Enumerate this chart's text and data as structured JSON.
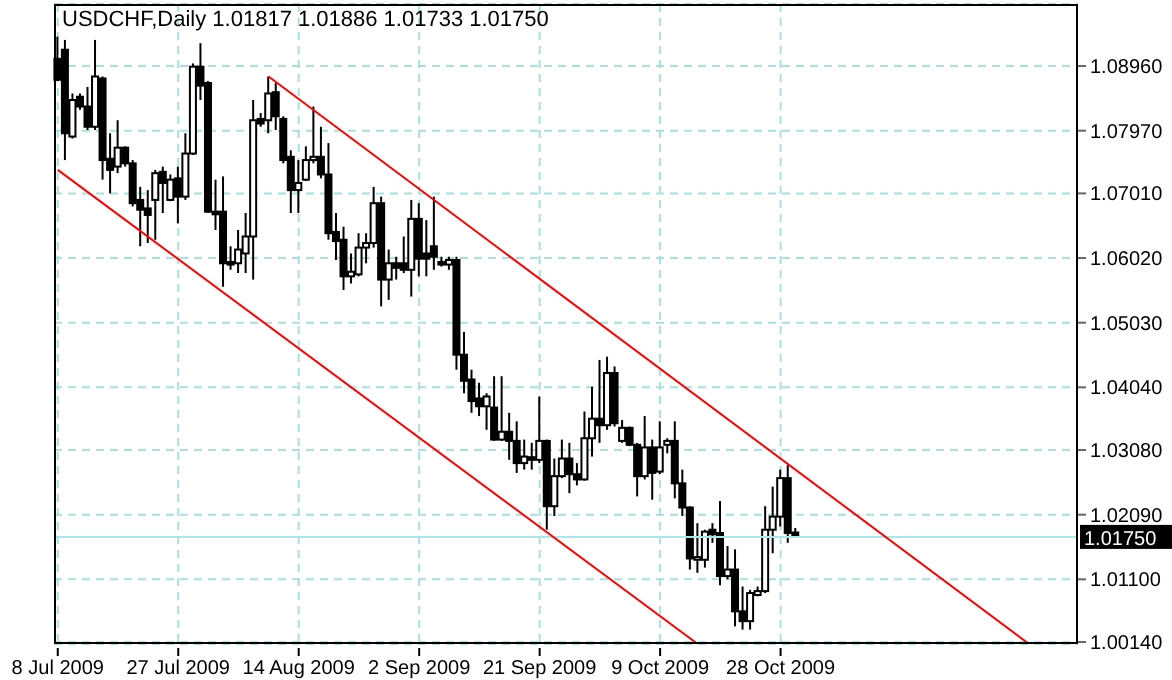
{
  "chart_data": {
    "type": "candlestick",
    "title": "USDCHF,Daily 1.01817 1.01886 1.01733 1.01750",
    "categories": [
      "8 Jul 2009",
      null,
      null,
      null,
      null,
      null,
      null,
      null,
      null,
      null,
      null,
      null,
      null,
      null,
      null,
      null,
      "27 Jul 2009",
      null,
      null,
      null,
      null,
      null,
      null,
      null,
      null,
      null,
      null,
      null,
      null,
      null,
      null,
      null,
      "14 Aug 2009",
      null,
      null,
      null,
      null,
      null,
      null,
      null,
      null,
      null,
      null,
      null,
      null,
      null,
      null,
      null,
      "2 Sep 2009",
      null,
      null,
      null,
      null,
      null,
      null,
      null,
      null,
      null,
      null,
      null,
      null,
      null,
      null,
      null,
      "21 Sep 2009",
      null,
      null,
      null,
      null,
      null,
      null,
      null,
      null,
      null,
      null,
      null,
      null,
      null,
      null,
      null,
      "9 Oct 2009",
      null,
      null,
      null,
      null,
      null,
      null,
      null,
      null,
      null,
      null,
      null,
      null,
      null,
      null,
      null,
      "28 Oct 2009",
      null,
      null,
      null,
      null,
      null,
      null,
      null,
      null,
      null,
      null,
      null,
      null,
      null,
      null,
      null,
      null,
      null,
      null,
      null,
      null,
      null,
      null,
      null,
      null,
      null,
      null,
      null,
      null,
      null,
      null,
      null,
      null,
      null,
      null,
      null,
      null,
      null,
      null,
      null
    ],
    "ohlc": [
      [
        1.0907,
        1.0941,
        1.0873,
        1.0875
      ],
      [
        1.0921,
        1.0936,
        1.0752,
        1.0793
      ],
      [
        1.0788,
        1.0854,
        1.0785,
        1.0844
      ],
      [
        1.0849,
        1.0854,
        1.0829,
        1.0834
      ],
      [
        1.0834,
        1.0864,
        1.0798,
        1.0803
      ],
      [
        1.0803,
        1.0936,
        1.0798,
        1.088
      ],
      [
        1.0877,
        1.088,
        1.0722,
        1.0752
      ],
      [
        1.0754,
        1.0793,
        1.0701,
        1.0737
      ],
      [
        1.0742,
        1.0813,
        1.0732,
        1.0771
      ],
      [
        1.0771,
        1.0773,
        1.0742,
        1.0747
      ],
      [
        1.0747,
        1.0752,
        1.0681,
        1.0686
      ],
      [
        1.0691,
        1.0711,
        1.062,
        1.0676
      ],
      [
        1.0678,
        1.0706,
        1.0625,
        1.0668
      ],
      [
        1.0691,
        1.0737,
        1.063,
        1.0732
      ],
      [
        1.0734,
        1.0742,
        1.0671,
        1.0717
      ],
      [
        1.0691,
        1.073,
        1.0689,
        1.0722
      ],
      [
        1.0724,
        1.0742,
        1.0655,
        1.0696
      ],
      [
        1.0696,
        1.0793,
        1.0691,
        1.0762
      ],
      [
        1.0762,
        1.09,
        1.076,
        1.0895
      ],
      [
        1.0895,
        1.0931,
        1.0844,
        1.0866
      ],
      [
        1.087,
        1.0873,
        1.0671,
        1.0673
      ],
      [
        1.0673,
        1.0722,
        1.0645,
        1.0669
      ],
      [
        1.0673,
        1.0727,
        1.0558,
        1.0594
      ],
      [
        1.0596,
        1.062,
        1.0584,
        1.0592
      ],
      [
        1.0594,
        1.0645,
        1.0579,
        1.0615
      ],
      [
        1.0609,
        1.0671,
        1.0579,
        1.0635
      ],
      [
        1.0635,
        1.0844,
        1.0569,
        1.0813
      ],
      [
        1.0815,
        1.0824,
        1.0803,
        1.0808
      ],
      [
        1.0813,
        1.088,
        1.0793,
        1.0854
      ],
      [
        1.0856,
        1.087,
        1.0798,
        1.0819
      ],
      [
        1.0815,
        1.0819,
        1.0747,
        1.0752
      ],
      [
        1.0757,
        1.0767,
        1.0671,
        1.0706
      ],
      [
        1.0706,
        1.0752,
        1.0671,
        1.0717
      ],
      [
        1.0722,
        1.0773,
        1.072,
        1.0752
      ],
      [
        1.0752,
        1.0834,
        1.0747,
        1.0757
      ],
      [
        1.0757,
        1.0803,
        1.0724,
        1.073
      ],
      [
        1.073,
        1.0778,
        1.063,
        1.064
      ],
      [
        1.0642,
        1.0671,
        1.0599,
        1.0628
      ],
      [
        1.063,
        1.065,
        1.0553,
        1.0574
      ],
      [
        1.0574,
        1.0609,
        1.0563,
        1.0581
      ],
      [
        1.0577,
        1.064,
        1.0574,
        1.0618
      ],
      [
        1.0618,
        1.064,
        1.0594,
        1.0625
      ],
      [
        1.0625,
        1.0711,
        1.0618,
        1.0686
      ],
      [
        1.0686,
        1.0696,
        1.0528,
        1.0569
      ],
      [
        1.0569,
        1.0615,
        1.0538,
        1.0594
      ],
      [
        1.0594,
        1.0604,
        1.0569,
        1.0587
      ],
      [
        1.0594,
        1.0635,
        1.0579,
        1.0584
      ],
      [
        1.0584,
        1.0691,
        1.0543,
        1.0662
      ],
      [
        1.0662,
        1.0686,
        1.0574,
        1.0601
      ],
      [
        1.0609,
        1.066,
        1.0574,
        1.0601
      ],
      [
        1.062,
        1.0696,
        1.0584,
        1.0604
      ],
      [
        1.0596,
        1.0604,
        1.0589,
        1.0592
      ],
      [
        1.0592,
        1.0604,
        1.0584,
        1.0599
      ],
      [
        1.0599,
        1.0604,
        1.0431,
        1.0454
      ],
      [
        1.0454,
        1.0489,
        1.0395,
        1.0414
      ],
      [
        1.0416,
        1.0431,
        1.0365,
        1.0383
      ],
      [
        1.0387,
        1.0411,
        1.036,
        1.0375
      ],
      [
        1.0375,
        1.0395,
        1.0339,
        1.039
      ],
      [
        1.0373,
        1.0421,
        1.0322,
        1.0324
      ],
      [
        1.0324,
        1.0421,
        1.0322,
        1.0336
      ],
      [
        1.0336,
        1.0365,
        1.0293,
        1.0322
      ],
      [
        1.0322,
        1.0352,
        1.0273,
        1.0288
      ],
      [
        1.0288,
        1.0324,
        1.0278,
        1.0298
      ],
      [
        1.0297,
        1.0319,
        1.0278,
        1.0293
      ],
      [
        1.0293,
        1.039,
        1.0288,
        1.0322
      ],
      [
        1.0322,
        1.0324,
        1.0186,
        1.0222
      ],
      [
        1.0222,
        1.0295,
        1.0207,
        1.0268
      ],
      [
        1.0268,
        1.0324,
        1.0265,
        1.0295
      ],
      [
        1.0295,
        1.0319,
        1.0242,
        1.0271
      ],
      [
        1.0271,
        1.0288,
        1.0254,
        1.0263
      ],
      [
        1.0263,
        1.0367,
        1.0261,
        1.0326
      ],
      [
        1.0326,
        1.0405,
        1.0298,
        1.0356
      ],
      [
        1.0356,
        1.0446,
        1.0319,
        1.0346
      ],
      [
        1.0346,
        1.0451,
        1.0339,
        1.0426
      ],
      [
        1.0426,
        1.0436,
        1.0344,
        1.0349
      ],
      [
        1.0322,
        1.0354,
        1.0319,
        1.0342
      ],
      [
        1.0342,
        1.0344,
        1.0314,
        1.0316
      ],
      [
        1.0316,
        1.0319,
        1.0237,
        1.0268
      ],
      [
        1.0268,
        1.036,
        1.0263,
        1.0312
      ],
      [
        1.0312,
        1.0324,
        1.0232,
        1.0273
      ],
      [
        1.0275,
        1.0352,
        1.0271,
        1.0312
      ],
      [
        1.0316,
        1.0326,
        1.0303,
        1.0322
      ],
      [
        1.0322,
        1.0352,
        1.0234,
        1.0257
      ],
      [
        1.0257,
        1.0278,
        1.0207,
        1.022
      ],
      [
        1.022,
        1.0222,
        1.0125,
        1.0142
      ],
      [
        1.014,
        1.0196,
        1.012,
        1.0144
      ],
      [
        1.014,
        1.0186,
        1.0128,
        1.0183
      ],
      [
        1.0186,
        1.0196,
        1.0166,
        1.0179
      ],
      [
        1.0181,
        1.023,
        1.0101,
        1.0115
      ],
      [
        1.0115,
        1.0161,
        1.011,
        1.0125
      ],
      [
        1.0125,
        1.0156,
        1.0038,
        1.0061
      ],
      [
        1.0061,
        1.0099,
        1.0033,
        1.0046
      ],
      [
        1.0046,
        1.0094,
        1.0033,
        1.0089
      ],
      [
        1.0086,
        1.0099,
        1.0084,
        1.0092
      ],
      [
        1.0092,
        1.0222,
        1.0089,
        1.0186
      ],
      [
        1.0186,
        1.0252,
        1.015,
        1.0206
      ],
      [
        1.0206,
        1.0278,
        1.0191,
        1.0265
      ],
      [
        1.0265,
        1.0285,
        1.0166,
        1.0181
      ],
      [
        1.01817,
        1.01886,
        1.01733,
        1.0175
      ],
      null,
      null,
      null,
      null,
      null,
      null,
      null,
      null,
      null,
      null,
      null,
      null,
      null,
      null,
      null,
      null,
      null,
      null,
      null,
      null,
      null,
      null,
      null,
      null,
      null,
      null,
      null,
      null,
      null,
      null,
      null,
      null,
      null,
      null,
      null,
      null,
      null
    ],
    "series": [
      {
        "type": "line",
        "color": "#ff0000",
        "values": [
          null,
          null,
          null,
          null,
          null,
          null,
          null,
          null,
          null,
          null,
          null,
          null,
          null,
          null,
          null,
          null,
          null,
          null,
          null,
          null,
          null,
          null,
          null,
          null,
          null,
          null,
          null,
          null,
          1.088,
          null,
          null,
          null,
          null,
          null,
          null,
          null,
          null,
          null,
          null,
          null,
          null,
          null,
          null,
          null,
          null,
          null,
          null,
          null,
          null,
          null,
          null,
          null,
          null,
          null,
          null,
          null,
          null,
          null,
          null,
          null,
          null,
          null,
          null,
          null,
          null,
          null,
          null,
          null,
          null,
          null,
          null,
          null,
          null,
          null,
          null,
          null,
          null,
          null,
          null,
          null,
          null,
          null,
          null,
          null,
          null,
          null,
          null,
          null,
          null,
          null,
          null,
          null,
          null,
          null,
          null,
          null,
          null,
          null,
          null,
          null,
          null,
          null,
          null,
          null,
          null,
          null,
          null,
          null,
          null,
          null,
          null,
          null,
          null,
          null,
          null,
          null,
          null,
          null,
          null,
          null,
          null,
          null,
          null,
          null,
          null,
          null,
          null,
          null,
          null,
          1.0011,
          null,
          null,
          null,
          null,
          null,
          null
        ]
      },
      {
        "type": "line",
        "color": "#ff0000",
        "values": [
          1.0737,
          null,
          null,
          null,
          null,
          null,
          null,
          null,
          null,
          null,
          null,
          null,
          null,
          null,
          null,
          null,
          null,
          null,
          null,
          null,
          null,
          null,
          null,
          null,
          null,
          null,
          null,
          null,
          null,
          null,
          null,
          null,
          null,
          null,
          null,
          null,
          null,
          null,
          null,
          null,
          null,
          null,
          null,
          null,
          null,
          null,
          null,
          null,
          null,
          null,
          null,
          null,
          null,
          null,
          null,
          null,
          null,
          null,
          null,
          null,
          null,
          null,
          null,
          null,
          null,
          null,
          null,
          null,
          null,
          null,
          null,
          null,
          null,
          null,
          null,
          null,
          null,
          null,
          null,
          null,
          null,
          null,
          null,
          null,
          null,
          1.0011,
          null,
          null,
          null,
          null,
          null,
          null,
          null,
          null,
          null,
          null,
          null,
          null,
          null,
          null,
          null,
          null,
          null,
          null,
          null,
          null,
          null,
          null,
          null,
          null,
          null,
          null,
          null,
          null,
          null,
          null,
          null,
          null,
          null,
          null,
          null,
          null,
          null,
          null,
          null,
          null,
          null,
          null,
          null,
          null,
          null,
          null,
          null,
          null,
          null,
          null
        ]
      }
    ],
    "ylim": [
      1.0011,
      1.0991
    ],
    "yticks": [
      {
        "value": 1.0014,
        "label": "1.00140"
      },
      {
        "value": 1.011,
        "label": "1.01100"
      },
      {
        "value": 1.0209,
        "label": "1.02090"
      },
      {
        "value": 1.0308,
        "label": "1.03080"
      },
      {
        "value": 1.0404,
        "label": "1.04040"
      },
      {
        "value": 1.0503,
        "label": "1.05030"
      },
      {
        "value": 1.0602,
        "label": "1.06020"
      },
      {
        "value": 1.0701,
        "label": "1.07010"
      },
      {
        "value": 1.0797,
        "label": "1.07970"
      },
      {
        "value": 1.0896,
        "label": "1.08960"
      }
    ],
    "ref_lines": [
      {
        "axis": "y",
        "value": 1.0175,
        "label": "1.01750",
        "color": "#a8e8ec"
      }
    ],
    "grid": true
  }
}
